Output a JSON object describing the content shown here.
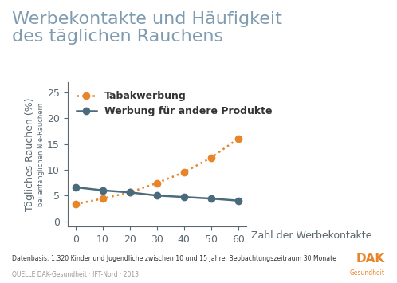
{
  "chart_data": {
    "type": "line",
    "title": "Werbekontakte und Häufigkeit\ndes täglichen Rauchens",
    "ylabel": "Tägliches Rauchen (%)",
    "ylabel_note": "bei anfänglichen Nie-Rauchern",
    "xlabel": "Zahl der Werbekontakte",
    "footnote": "Datenbasis: 1.320 Kinder und Jugendliche zwischen 10 und 15 Jahre, Beobachtungszeitraum 30 Monate",
    "source": "QUELLE DAK-Gesundheit · IFT-Nord · 2013",
    "logo": [
      "DAK",
      "Gesundheit"
    ],
    "x": [
      0,
      10,
      20,
      30,
      40,
      50,
      60
    ],
    "series": [
      {
        "name": "Tabakwerbung",
        "color": "#e8852a",
        "marker": "o",
        "line_style": "dotted",
        "values": [
          3.3,
          4.4,
          5.6,
          7.4,
          9.5,
          12.3,
          16.0
        ]
      },
      {
        "name": "Werbung für andere Produkte",
        "color": "#4a6b7d",
        "marker": "o",
        "line_style": "solid",
        "values": [
          6.6,
          6.0,
          5.6,
          5.0,
          4.7,
          4.4,
          4.0
        ]
      }
    ],
    "xlim": [
      -3,
      63
    ],
    "xticks": [
      0,
      10,
      20,
      30,
      40,
      50,
      60
    ],
    "ylim": [
      -1,
      27
    ],
    "yticks": [
      0,
      5,
      10,
      15,
      20,
      25
    ],
    "grid": false,
    "legend": "upper left"
  }
}
